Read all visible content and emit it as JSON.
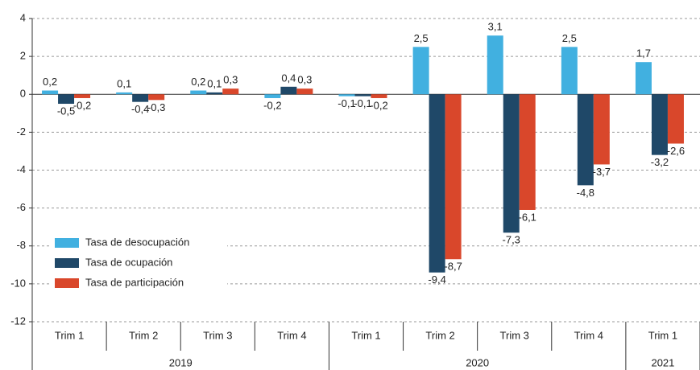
{
  "chart_data": {
    "type": "bar",
    "groups": [
      {
        "label": "2019",
        "categories": [
          "Trim 1",
          "Trim 2",
          "Trim 3",
          "Trim 4"
        ]
      },
      {
        "label": "2020",
        "categories": [
          "Trim 1",
          "Trim 2",
          "Trim 3",
          "Trim 4"
        ]
      },
      {
        "label": "2021",
        "categories": [
          "Trim 1"
        ]
      }
    ],
    "series": [
      {
        "name": "Tasa de desocupación",
        "color": "#41b0e0",
        "values": [
          0.2,
          0.1,
          0.2,
          -0.2,
          -0.1,
          2.5,
          3.1,
          2.5,
          1.7
        ],
        "value_labels": [
          "0,2",
          "0,1",
          "0,2",
          "-0,2",
          "-0,1",
          "2,5",
          "3,1",
          "2,5",
          "1,7"
        ]
      },
      {
        "name": "Tasa de ocupación",
        "color": "#1f4868",
        "values": [
          -0.5,
          -0.4,
          0.1,
          0.4,
          -0.1,
          -9.4,
          -7.3,
          -4.8,
          -3.2
        ],
        "value_labels": [
          "-0,5",
          "-0,4",
          "0,1",
          "0,4",
          "-0,1",
          "-9,4",
          "-7,3",
          "-4,8",
          "-3,2"
        ]
      },
      {
        "name": "Tasa de participación",
        "color": "#d9472b",
        "values": [
          -0.2,
          -0.3,
          0.3,
          0.3,
          -0.2,
          -8.7,
          -6.1,
          -3.7,
          -2.6
        ],
        "value_labels": [
          "-0,2",
          "-0,3",
          "0,3",
          "0,3",
          "-0,2",
          "-8,7",
          "-6,1",
          "-3,7",
          "-2,6"
        ]
      }
    ],
    "ylim": [
      -12,
      4
    ],
    "yticks": [
      -12,
      -10,
      -8,
      -6,
      -4,
      -2,
      0,
      2,
      4
    ],
    "grid": true,
    "legend": "lower left"
  }
}
